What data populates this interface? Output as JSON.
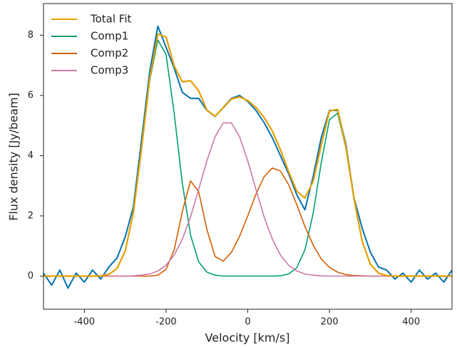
{
  "chart_data": {
    "type": "line",
    "x_label": "Velocity [km/s]",
    "y_label": "Flux density [Jy/beam]",
    "xlim": [
      -500,
      500
    ],
    "ylim": [
      -1.1,
      9.05
    ],
    "xticks": [
      -400,
      -200,
      0,
      200,
      400
    ],
    "yticks": [
      0,
      2,
      4,
      6,
      8
    ],
    "legend": "upper left",
    "x": [
      -500,
      -480,
      -460,
      -440,
      -420,
      -400,
      -380,
      -360,
      -340,
      -320,
      -300,
      -280,
      -260,
      -240,
      -220,
      -200,
      -180,
      -160,
      -140,
      -120,
      -100,
      -80,
      -60,
      -40,
      -20,
      0,
      20,
      40,
      60,
      80,
      100,
      120,
      140,
      160,
      180,
      200,
      220,
      240,
      260,
      280,
      300,
      320,
      340,
      360,
      380,
      400,
      420,
      440,
      460,
      480,
      500
    ],
    "spectrum": {
      "color": "#0072b2",
      "values": [
        0.1,
        -0.3,
        0.2,
        -0.4,
        0.1,
        -0.2,
        0.2,
        -0.1,
        0.3,
        0.6,
        1.3,
        2.3,
        4.5,
        6.8,
        8.3,
        7.6,
        6.9,
        6.1,
        5.9,
        5.9,
        5.5,
        5.3,
        5.6,
        5.9,
        6.0,
        5.8,
        5.5,
        5.1,
        4.6,
        4.0,
        3.4,
        2.7,
        2.2,
        3.3,
        4.6,
        5.5,
        5.5,
        4.4,
        2.6,
        1.6,
        0.8,
        0.3,
        0.2,
        -0.1,
        0.1,
        -0.2,
        0.2,
        -0.1,
        0.1,
        -0.2,
        0.2
      ]
    },
    "series": [
      {
        "name": "Total Fit",
        "color": "#e69f00",
        "values": [
          0,
          0,
          0,
          0,
          0,
          0,
          0,
          0.01,
          0.06,
          0.25,
          0.83,
          2.12,
          4.23,
          6.57,
          8.04,
          7.94,
          6.97,
          6.45,
          6.49,
          6.15,
          5.51,
          5.31,
          5.59,
          5.88,
          5.95,
          5.83,
          5.6,
          5.27,
          4.82,
          4.2,
          3.47,
          2.82,
          2.59,
          3.14,
          4.35,
          5.48,
          5.54,
          4.32,
          2.58,
          1.17,
          0.4,
          0.1,
          0.02,
          0,
          0,
          0,
          0,
          0,
          0,
          0,
          0
        ]
      },
      {
        "name": "Comp1",
        "color": "#009e73",
        "values": [
          0,
          0,
          0,
          0,
          0,
          0,
          0,
          0.01,
          0.06,
          0.25,
          0.83,
          2.11,
          4.2,
          6.5,
          7.84,
          7.36,
          5.39,
          3.07,
          1.36,
          0.47,
          0.13,
          0.03,
          0,
          0,
          0,
          0,
          0,
          0,
          0,
          0.01,
          0.07,
          0.28,
          0.87,
          2.08,
          3.77,
          5.19,
          5.41,
          4.27,
          2.56,
          1.16,
          0.4,
          0.1,
          0.02,
          0,
          0,
          0,
          0,
          0,
          0,
          0,
          0
        ]
      },
      {
        "name": "Comp2",
        "color": "#d55e00",
        "values": [
          0,
          0,
          0,
          0,
          0,
          0,
          0,
          0,
          0,
          0,
          0,
          0,
          0,
          0,
          0.03,
          0.22,
          0.88,
          2.15,
          3.16,
          2.8,
          1.55,
          0.65,
          0.5,
          0.79,
          1.32,
          2.0,
          2.72,
          3.3,
          3.59,
          3.49,
          3.04,
          2.37,
          1.65,
          1.03,
          0.57,
          0.29,
          0.13,
          0.05,
          0.02,
          0.01,
          0,
          0,
          0,
          0,
          0,
          0,
          0,
          0,
          0,
          0,
          0
        ]
      },
      {
        "name": "Comp3",
        "color": "#cc79a7",
        "values": [
          0,
          0,
          0,
          0,
          0,
          0,
          0,
          0,
          0,
          0,
          0,
          0.01,
          0.03,
          0.07,
          0.17,
          0.36,
          0.7,
          1.23,
          1.97,
          2.88,
          3.83,
          4.63,
          5.09,
          5.09,
          4.63,
          3.83,
          2.88,
          1.97,
          1.23,
          0.7,
          0.36,
          0.17,
          0.07,
          0.03,
          0.01,
          0,
          0,
          0,
          0,
          0,
          0,
          0,
          0,
          0,
          0,
          0,
          0,
          0,
          0,
          0,
          0
        ]
      }
    ]
  }
}
